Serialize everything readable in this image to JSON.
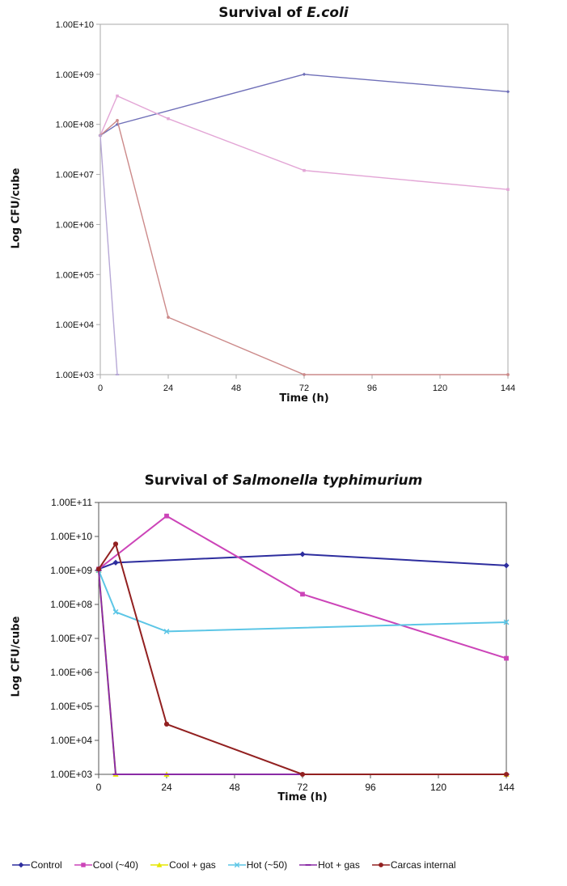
{
  "chart_data": [
    {
      "type": "line",
      "title_plain": "Survival of ",
      "title_italic": "E.coli",
      "xlabel": "Time (h)",
      "ylabel": "Log CFU/cube",
      "xlim": [
        0,
        144
      ],
      "ylim": [
        1000,
        10000000000
      ],
      "yscale": "log",
      "x_ticks": [
        0,
        24,
        48,
        72,
        96,
        120,
        144
      ],
      "y_ticks": [
        "1.00E+03",
        "1.00E+04",
        "1.00E+05",
        "1.00E+06",
        "1.00E+07",
        "1.00E+08",
        "1.00E+09",
        "1.00E+10"
      ],
      "grid": false,
      "series": [
        {
          "key": "control",
          "color": "#6f6fb8",
          "marker": "diamond",
          "x": [
            0,
            6,
            72,
            144
          ],
          "y": [
            60000000,
            100000000,
            1000000000,
            450000000
          ]
        },
        {
          "key": "cool",
          "color": "#e3a6d6",
          "marker": "square",
          "x": [
            0,
            6,
            24,
            72,
            144
          ],
          "y": [
            60000000,
            370000000,
            130000000,
            12000000,
            5000000
          ]
        },
        {
          "key": "carcas",
          "color": "#cc8a8a",
          "marker": "circle",
          "x": [
            0,
            6,
            24,
            72,
            144
          ],
          "y": [
            60000000,
            120000000,
            14000,
            1000,
            1000
          ]
        },
        {
          "key": "hot_gas",
          "color": "#b7a8d6",
          "marker": "dash",
          "x": [
            0,
            6
          ],
          "y": [
            60000000,
            1000
          ]
        }
      ]
    },
    {
      "type": "line",
      "title_plain": "Survival of ",
      "title_italic": "Salmonella typhimurium",
      "xlabel": "Time (h)",
      "ylabel": "Log CFU/cube",
      "xlim": [
        0,
        144
      ],
      "ylim": [
        1000,
        100000000000
      ],
      "yscale": "log",
      "x_ticks": [
        0,
        24,
        48,
        72,
        96,
        120,
        144
      ],
      "y_ticks": [
        "1.00E+03",
        "1.00E+04",
        "1.00E+05",
        "1.00E+06",
        "1.00E+07",
        "1.00E+08",
        "1.00E+09",
        "1.00E+10",
        "1.00E+11"
      ],
      "grid": false,
      "series": [
        {
          "key": "control",
          "color": "#2d2d9e",
          "marker": "diamond",
          "x": [
            0,
            6,
            72,
            144
          ],
          "y": [
            1100000000,
            1700000000,
            3000000000,
            1400000000
          ]
        },
        {
          "key": "cool",
          "color": "#cc44b8",
          "marker": "square",
          "x": [
            0,
            24,
            72,
            144
          ],
          "y": [
            1100000000,
            40000000000,
            200000000,
            2600000
          ]
        },
        {
          "key": "cool_gas",
          "color": "#e6e600",
          "marker": "triangle",
          "x": [
            0,
            6,
            24,
            144
          ],
          "y": [
            1000000000,
            1000,
            1000,
            1000
          ]
        },
        {
          "key": "hot",
          "color": "#5cc6e6",
          "marker": "x",
          "x": [
            0,
            6,
            24,
            144
          ],
          "y": [
            1000000000,
            60000000,
            16000000,
            30000000
          ]
        },
        {
          "key": "hot_gas",
          "color": "#8a2ba6",
          "marker": "dash",
          "x": [
            0,
            6,
            24,
            72,
            144
          ],
          "y": [
            1000000000,
            1000,
            1000,
            1000,
            1000
          ]
        },
        {
          "key": "carcas",
          "color": "#922020",
          "marker": "circle",
          "x": [
            0,
            6,
            24,
            72,
            144
          ],
          "y": [
            1100000000,
            6000000000,
            30000,
            1000,
            1000
          ]
        }
      ]
    }
  ],
  "legend": [
    {
      "key": "control",
      "label": "Control",
      "color": "#2d2d9e",
      "marker": "diamond"
    },
    {
      "key": "cool",
      "label": "Cool (~40)",
      "color": "#cc44b8",
      "marker": "square"
    },
    {
      "key": "cool_gas",
      "label": "Cool + gas",
      "color": "#e6e600",
      "marker": "triangle"
    },
    {
      "key": "hot",
      "label": "Hot (~50)",
      "color": "#5cc6e6",
      "marker": "x"
    },
    {
      "key": "hot_gas",
      "label": "Hot + gas",
      "color": "#8a2ba6",
      "marker": "dash"
    },
    {
      "key": "carcas",
      "label": "Carcas internal",
      "color": "#922020",
      "marker": "circle"
    }
  ]
}
